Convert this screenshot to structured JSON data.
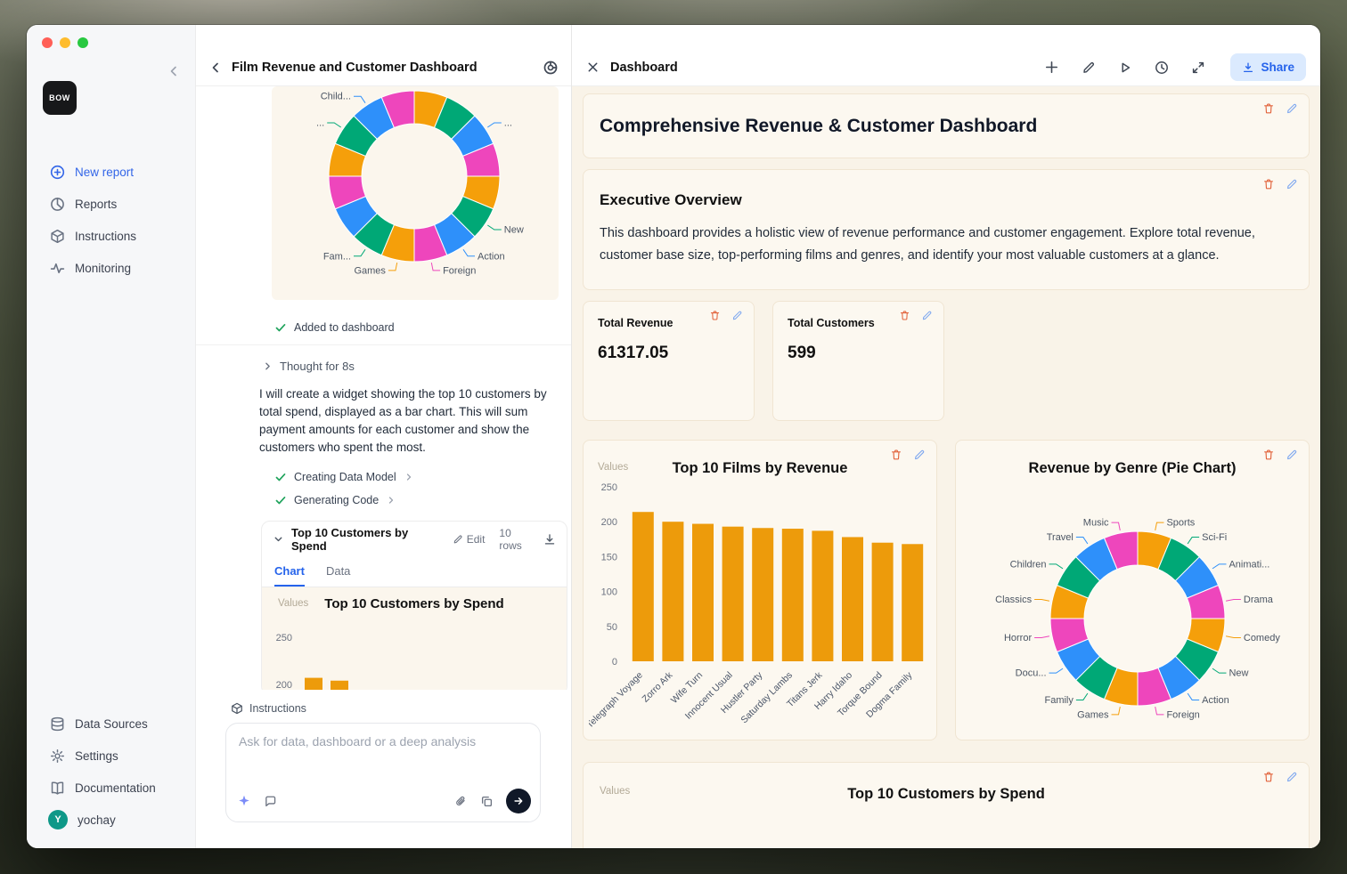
{
  "sidebar": {
    "logo": "BOW",
    "items": [
      {
        "label": "New report",
        "icon": "plus-circle"
      },
      {
        "label": "Reports",
        "icon": "pie-chart"
      },
      {
        "label": "Instructions",
        "icon": "package"
      },
      {
        "label": "Monitoring",
        "icon": "activity"
      }
    ],
    "footer_items": [
      {
        "label": "Data Sources",
        "icon": "database"
      },
      {
        "label": "Settings",
        "icon": "gear"
      },
      {
        "label": "Documentation",
        "icon": "book"
      },
      {
        "label": "yochay",
        "icon": "avatar",
        "avatar_letter": "Y"
      }
    ]
  },
  "chat_panel": {
    "title": "Film Revenue and Customer Dashboard",
    "added_to_dashboard": "Added to dashboard",
    "thought_label": "Thought for 8s",
    "message": "I will create a widget showing the top 10 customers by total spend, displayed as a bar chart. This will sum payment amounts for each customer and show the customers who spent the most.",
    "steps": [
      {
        "label": "Creating Data Model"
      },
      {
        "label": "Generating Code"
      }
    ],
    "widget": {
      "title": "Top 10 Customers by Spend",
      "edit_label": "Edit",
      "rows_label": "10 rows",
      "tabs": [
        "Chart",
        "Data"
      ],
      "active_tab": "Chart",
      "values_label": "Values",
      "chart_title": "Top 10 Customers by Spend"
    },
    "composer": {
      "instructions_label": "Instructions",
      "placeholder": "Ask for data, dashboard or a deep analysis"
    }
  },
  "dashboard": {
    "header": {
      "title": "Dashboard",
      "share_label": "Share"
    },
    "title_card_heading": "Comprehensive Revenue & Customer Dashboard",
    "overview": {
      "heading": "Executive Overview",
      "body": "This dashboard provides a holistic view of revenue performance and customer engagement. Explore total revenue, customer base size, top-performing films and genres, and identify your most valuable customers at a glance."
    },
    "stats": [
      {
        "label": "Total Revenue",
        "value": "61317.05"
      },
      {
        "label": "Total Customers",
        "value": "599"
      }
    ],
    "values_label": "Values",
    "bottom_card_title": "Top 10 Customers by Spend"
  },
  "colors": {
    "accent_blue": "#2F6BEB",
    "share_button_bg": "#DBEAFE",
    "bar_orange": "#ED9B0B",
    "pie_palette": [
      "#F59F0A",
      "#00A876",
      "#2E90FA",
      "#EE46BC"
    ],
    "dashboard_bg": "#F9F3E8",
    "card_bg": "#FCF8F0",
    "card_border": "#F0E5D2",
    "delete_icon": "#E2633C",
    "edit_icon": "#7FA8EF",
    "success_green": "#1FA35C"
  },
  "chart_data": [
    {
      "id": "genre_pie_preview",
      "type": "pie",
      "title": "",
      "note": "partially visible genre donut in chat history, top clipped",
      "labels_clockwise_from_top": [
        "",
        "",
        "...",
        "",
        "",
        "New",
        "Action",
        "Foreign",
        "Games",
        "Fam...",
        "",
        "",
        "",
        "...",
        "Child...",
        ""
      ],
      "equal_slices": true,
      "palette": [
        "#F59F0A",
        "#00A876",
        "#2E90FA",
        "#EE46BC"
      ]
    },
    {
      "id": "customers_bar_preview",
      "type": "bar",
      "title": "Top 10 Customers by Spend",
      "values_label": "Values",
      "ylim": [
        0,
        250
      ],
      "y_ticks": [
        250,
        200
      ],
      "visible_values": [
        207,
        204
      ],
      "bar_color": "#ED9B0B",
      "note": "bottom of chart clipped by composer"
    },
    {
      "id": "films_bar",
      "type": "bar",
      "title": "Top 10 Films by Revenue",
      "values_label": "Values",
      "categories": [
        "Telegraph Voyage",
        "Zorro Ark",
        "Wife Turn",
        "Innocent Usual",
        "Hustler Party",
        "Saturday Lambs",
        "Titans Jerk",
        "Harry Idaho",
        "Torque Bound",
        "Dogma Family"
      ],
      "values": [
        214,
        200,
        197,
        193,
        191,
        190,
        187,
        178,
        170,
        168
      ],
      "ylim": [
        0,
        250
      ],
      "y_ticks": [
        0,
        50,
        100,
        150,
        200,
        250
      ],
      "bar_color": "#ED9B0B",
      "grid": false,
      "x_label_rotation": -45
    },
    {
      "id": "genre_pie",
      "type": "pie",
      "title": "Revenue by Genre (Pie Chart)",
      "labels_clockwise_from_top": [
        "Sports",
        "Sci-Fi",
        "Animati...",
        "Drama",
        "Comedy",
        "New",
        "Action",
        "Foreign",
        "Games",
        "Family",
        "Docu...",
        "Horror",
        "Classics",
        "Children",
        "Travel",
        "Music"
      ],
      "equal_slices": true,
      "palette": [
        "#F59F0A",
        "#00A876",
        "#2E90FA",
        "#EE46BC"
      ],
      "legend_position": "callout-labels"
    }
  ]
}
